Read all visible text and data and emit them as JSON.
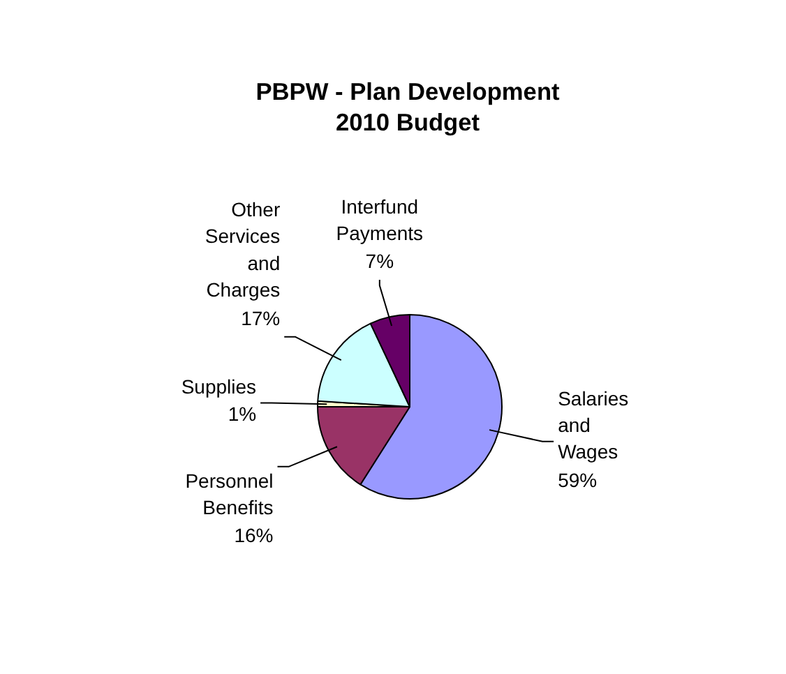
{
  "chart_data": {
    "type": "pie",
    "title": "PBPW - Plan Development",
    "subtitle": "2010 Budget",
    "categories": [
      "Salaries and Wages",
      "Personnel Benefits",
      "Supplies",
      "Other Services and Charges",
      "Interfund Payments"
    ],
    "values": [
      59,
      16,
      1,
      17,
      7
    ],
    "colors": [
      "#9999ff",
      "#993366",
      "#ffffcc",
      "#ccffff",
      "#660066"
    ],
    "value_labels": [
      "59%",
      "16%",
      "1%",
      "17%",
      "7%"
    ]
  }
}
